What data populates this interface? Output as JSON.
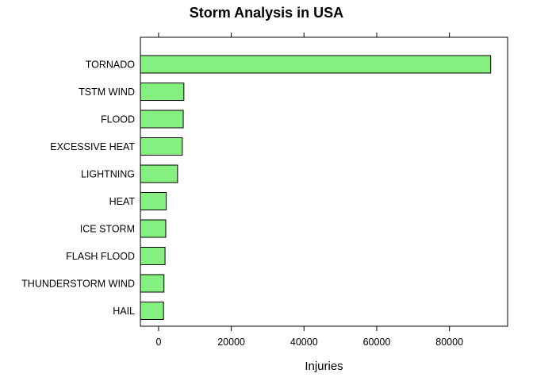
{
  "chart_data": {
    "type": "bar",
    "orientation": "horizontal",
    "title": "Storm Analysis in USA",
    "xlabel": "Injuries",
    "ylabel": "",
    "categories": [
      "TORNADO",
      "TSTM WIND",
      "FLOOD",
      "EXCESSIVE HEAT",
      "LIGHTNING",
      "HEAT",
      "ICE STORM",
      "FLASH FLOOD",
      "THUNDERSTORM WIND",
      "HAIL"
    ],
    "values": [
      91346,
      6957,
      6789,
      6525,
      5230,
      2100,
      1975,
      1777,
      1488,
      1361
    ],
    "xlim": [
      -5000,
      96000
    ],
    "xticks": [
      0,
      20000,
      40000,
      60000,
      80000
    ],
    "xtick_labels": [
      "0",
      "20000",
      "40000",
      "60000",
      "80000"
    ],
    "bar_color": "#85f07f",
    "bar_edge_color": "#000000",
    "grid": false,
    "legend": "none"
  }
}
